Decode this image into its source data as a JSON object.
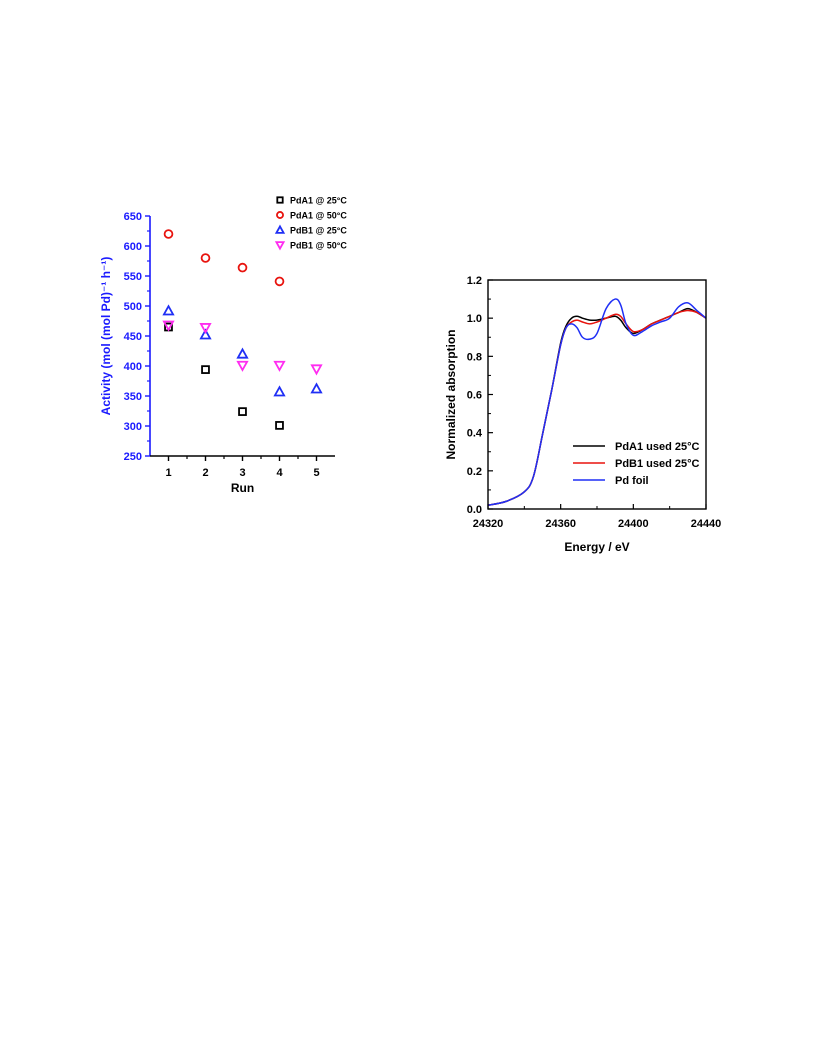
{
  "colors": {
    "axis_left": "#1a1aff",
    "black": "#000000",
    "red": "#e8140f",
    "blue": "#1f2ff5",
    "magenta": "#ff2cf0"
  },
  "chart_data": [
    {
      "type": "scatter",
      "xlabel": "Run",
      "ylabel": "Activity (mol (mol Pd)⁻¹ h⁻¹)",
      "xlim": [
        0.5,
        5.5
      ],
      "ylim": [
        250,
        650
      ],
      "x_ticks": [
        "1",
        "2",
        "3",
        "4",
        "5"
      ],
      "y_ticks": [
        "250",
        "300",
        "350",
        "400",
        "450",
        "500",
        "550",
        "600",
        "650"
      ],
      "legend_placement": "top-right",
      "grid": false,
      "series": [
        {
          "name": "PdA1 @ 25°C",
          "marker": "square",
          "color": "#000000",
          "x": [
            1,
            2,
            3,
            4
          ],
          "y": [
            465,
            394,
            324,
            301
          ]
        },
        {
          "name": "PdA1 @ 50°C",
          "marker": "circle",
          "color": "#e8140f",
          "x": [
            1,
            2,
            3,
            4
          ],
          "y": [
            620,
            580,
            564,
            541
          ]
        },
        {
          "name": "PdB1 @ 25°C",
          "marker": "triangle-up",
          "color": "#1f2ff5",
          "x": [
            1,
            2,
            3,
            4,
            5
          ],
          "y": [
            492,
            452,
            420,
            357,
            362
          ]
        },
        {
          "name": "PdB1 @ 50°C",
          "marker": "triangle-down",
          "color": "#ff2cf0",
          "x": [
            1,
            2,
            3,
            4,
            5
          ],
          "y": [
            468,
            464,
            401,
            401,
            395
          ]
        }
      ]
    },
    {
      "type": "line",
      "xlabel": "Energy / eV",
      "ylabel": "Normalized absorption",
      "xlim": [
        24320,
        24440
      ],
      "ylim": [
        0.0,
        1.2
      ],
      "x_ticks": [
        "24320",
        "24360",
        "24400",
        "24440"
      ],
      "y_ticks": [
        "0.0",
        "0.2",
        "0.4",
        "0.6",
        "0.8",
        "1.0",
        "1.2"
      ],
      "legend_placement": "bottom-right",
      "grid": false,
      "series": [
        {
          "name": "PdA1 used 25°C",
          "color": "#000000",
          "x": [
            24320,
            24330,
            24340,
            24345,
            24350,
            24355,
            24360,
            24363,
            24366,
            24369,
            24372,
            24376,
            24380,
            24385,
            24390,
            24393,
            24396,
            24400,
            24405,
            24410,
            24415,
            24420,
            24425,
            24430,
            24435,
            24440
          ],
          "y": [
            0.02,
            0.04,
            0.09,
            0.17,
            0.39,
            0.62,
            0.87,
            0.96,
            1.0,
            1.01,
            1.0,
            0.99,
            0.99,
            1.0,
            1.01,
            0.99,
            0.95,
            0.92,
            0.94,
            0.97,
            0.99,
            1.01,
            1.03,
            1.05,
            1.03,
            1.0
          ]
        },
        {
          "name": "PdB1 used 25°C",
          "color": "#e8140f",
          "x": [
            24320,
            24330,
            24340,
            24345,
            24350,
            24355,
            24360,
            24363,
            24366,
            24369,
            24372,
            24376,
            24380,
            24385,
            24390,
            24393,
            24396,
            24400,
            24405,
            24410,
            24415,
            24420,
            24425,
            24430,
            24435,
            24440
          ],
          "y": [
            0.02,
            0.04,
            0.09,
            0.17,
            0.39,
            0.62,
            0.86,
            0.95,
            0.98,
            0.99,
            0.98,
            0.97,
            0.98,
            1.0,
            1.02,
            1.01,
            0.97,
            0.93,
            0.94,
            0.97,
            0.99,
            1.01,
            1.03,
            1.04,
            1.03,
            1.0
          ]
        },
        {
          "name": "Pd foil",
          "color": "#1f2ff5",
          "x": [
            24320,
            24330,
            24340,
            24345,
            24350,
            24355,
            24360,
            24363,
            24366,
            24369,
            24372,
            24376,
            24380,
            24385,
            24390,
            24393,
            24396,
            24400,
            24405,
            24410,
            24415,
            24420,
            24425,
            24430,
            24435,
            24440
          ],
          "y": [
            0.02,
            0.04,
            0.09,
            0.17,
            0.39,
            0.62,
            0.86,
            0.95,
            0.97,
            0.95,
            0.9,
            0.89,
            0.92,
            1.05,
            1.1,
            1.07,
            0.97,
            0.91,
            0.93,
            0.96,
            0.98,
            1.0,
            1.06,
            1.08,
            1.04,
            1.0
          ]
        }
      ]
    }
  ]
}
